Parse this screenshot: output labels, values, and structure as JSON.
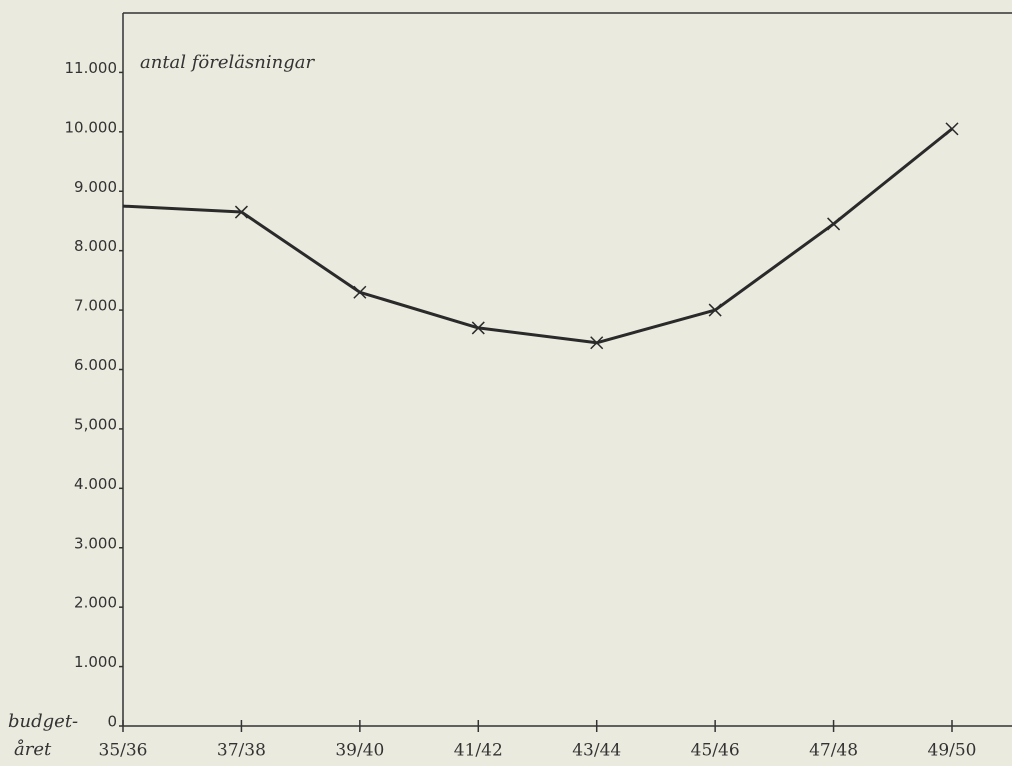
{
  "chart_data": {
    "type": "line",
    "y_label": "antal föreläsningar",
    "x_label": [
      "budget-",
      "året"
    ],
    "categories": [
      "35/36",
      "37/38",
      "39/40",
      "41/42",
      "43/44",
      "45/46",
      "47/48",
      "49/50"
    ],
    "values": [
      8750,
      8650,
      7300,
      6700,
      6450,
      7000,
      8450,
      10050
    ],
    "color": "#2a2a2a",
    "ylim": [
      0,
      12000
    ],
    "yticks": [
      0,
      {
        "value": 1000,
        "label": "1.000"
      },
      {
        "value": 2000,
        "label": "2.000"
      },
      {
        "value": 3000,
        "label": "3.000"
      },
      {
        "value": 4000,
        "label": "4.000"
      },
      {
        "value": 5000,
        "label": "5,000"
      },
      {
        "value": 6000,
        "label": "6.000"
      },
      {
        "value": 7000,
        "label": "7.000"
      },
      {
        "value": 8000,
        "label": "8.000"
      },
      {
        "value": 9000,
        "label": "9.000"
      },
      {
        "value": 10000,
        "label": "10.000"
      },
      {
        "value": 11000,
        "label": "11.000"
      }
    ],
    "grid": false
  }
}
